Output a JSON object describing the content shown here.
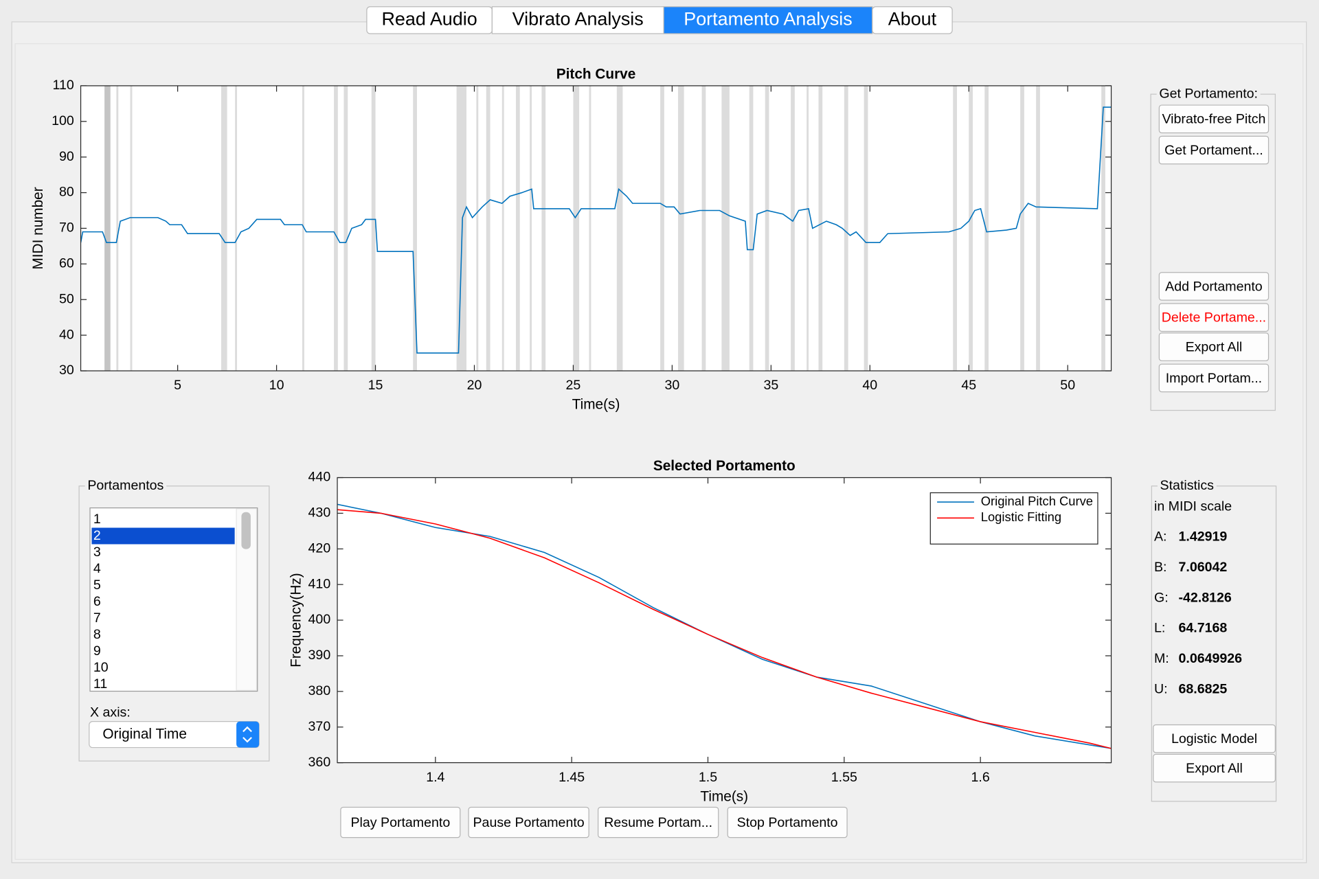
{
  "tabs": {
    "items": [
      "Read Audio",
      "Vibrato Analysis",
      "Portamento Analysis",
      "About"
    ],
    "active": 2
  },
  "chart_data": [
    {
      "type": "line",
      "title": "Pitch Curve",
      "x_label": "Time(s)",
      "y_label": "MIDI number",
      "color": "#0072bd",
      "x": [
        0.1,
        0.2,
        1.2,
        1.4,
        1.9,
        2.1,
        2.6,
        4.0,
        4.4,
        4.6,
        5.2,
        5.5,
        7.1,
        7.4,
        7.9,
        8.2,
        8.6,
        9.0,
        10.2,
        10.4,
        11.3,
        11.5,
        12.9,
        13.2,
        13.5,
        13.8,
        14.3,
        14.5,
        15.0,
        15.1,
        16.9,
        17.1,
        19.2,
        19.4,
        19.6,
        19.9,
        20.4,
        20.8,
        21.4,
        21.8,
        22.4,
        22.9,
        23.0,
        24.8,
        25.1,
        25.4,
        27.1,
        27.3,
        27.7,
        28.0,
        29.4,
        29.7,
        30.1,
        30.4,
        31.4,
        32.4,
        32.9,
        33.7,
        33.8,
        34.1,
        34.3,
        34.8,
        35.6,
        36.1,
        36.4,
        36.9,
        37.1,
        37.8,
        38.3,
        38.6,
        39.0,
        39.3,
        39.8,
        40.5,
        40.9,
        44.0,
        44.6,
        45.0,
        45.3,
        45.6,
        45.9,
        46.9,
        47.4,
        47.6,
        48.0,
        48.4,
        51.5,
        51.8,
        52.2
      ],
      "values": [
        66,
        69,
        69,
        66,
        66,
        72,
        73,
        73,
        72,
        71,
        71,
        68.5,
        68.5,
        66,
        66,
        69,
        70,
        72.5,
        72.5,
        71,
        71,
        69,
        69,
        66,
        66,
        70,
        71,
        72.5,
        72.5,
        63.5,
        63.5,
        35,
        35,
        73,
        76,
        73,
        76,
        78,
        77,
        79,
        80,
        81,
        75.5,
        75.5,
        73,
        75.5,
        75.5,
        81,
        79,
        77,
        77,
        76,
        76,
        74,
        75,
        75,
        73.5,
        72,
        64,
        64,
        74,
        75,
        74,
        72,
        75,
        75.5,
        70,
        72,
        71,
        70,
        68,
        69,
        66,
        66,
        68.5,
        69,
        70,
        72,
        75,
        75.5,
        69,
        69.5,
        70,
        74,
        77,
        76,
        75.5,
        104,
        104
      ],
      "regions": [
        [
          1.3,
          1.6
        ],
        [
          1.9,
          2.0
        ],
        [
          2.6,
          2.7
        ],
        [
          7.2,
          7.5
        ],
        [
          7.9,
          8.0
        ],
        [
          11.3,
          11.4
        ],
        [
          12.9,
          13.1
        ],
        [
          13.4,
          13.6
        ],
        [
          14.8,
          15.0
        ],
        [
          16.9,
          17.1
        ],
        [
          19.1,
          19.6
        ],
        [
          20.1,
          20.2
        ],
        [
          20.6,
          20.8
        ],
        [
          21.4,
          21.5
        ],
        [
          22.1,
          22.3
        ],
        [
          22.8,
          22.9
        ],
        [
          23.4,
          23.6
        ],
        [
          25.0,
          25.3
        ],
        [
          25.8,
          25.9
        ],
        [
          27.2,
          27.5
        ],
        [
          29.4,
          29.6
        ],
        [
          30.3,
          30.6
        ],
        [
          31.5,
          31.7
        ],
        [
          32.5,
          32.9
        ],
        [
          33.9,
          34.1
        ],
        [
          34.7,
          34.9
        ],
        [
          36.0,
          36.2
        ],
        [
          36.8,
          36.9
        ],
        [
          37.4,
          37.6
        ],
        [
          38.7,
          38.9
        ],
        [
          39.7,
          39.9
        ],
        [
          44.2,
          44.4
        ],
        [
          45.0,
          45.2
        ],
        [
          45.8,
          46.0
        ],
        [
          47.6,
          47.8
        ],
        [
          48.4,
          48.6
        ],
        [
          51.7,
          51.9
        ]
      ],
      "region_color": "#dcdcdc",
      "xlim": [
        0.1,
        52.2
      ],
      "ylim": [
        30,
        110
      ],
      "xticks": [
        5,
        10,
        15,
        20,
        25,
        30,
        35,
        40,
        45,
        50
      ],
      "yticks": [
        30,
        40,
        50,
        60,
        70,
        80,
        90,
        100,
        110
      ]
    },
    {
      "type": "line",
      "title": "Selected Portamento",
      "x_label": "Time(s)",
      "y_label": "Frequency(Hz)",
      "x": [
        1.364,
        1.38,
        1.4,
        1.42,
        1.44,
        1.46,
        1.48,
        1.5,
        1.52,
        1.54,
        1.56,
        1.58,
        1.6,
        1.62,
        1.64,
        1.648
      ],
      "series": [
        {
          "name": "Original Pitch Curve",
          "color": "#0072bd",
          "values": [
            432.5,
            430,
            426,
            423.5,
            419,
            412,
            403.5,
            396,
            389,
            384,
            381.5,
            376.5,
            371.5,
            367.5,
            365,
            364
          ]
        },
        {
          "name": "Logistic Fitting",
          "color": "#ff0000",
          "values": [
            431,
            430,
            427,
            423,
            417.5,
            410.5,
            403,
            396,
            389.5,
            384,
            379.5,
            375.5,
            371.5,
            368.5,
            365.5,
            364
          ]
        }
      ],
      "xlim": [
        1.364,
        1.648
      ],
      "ylim": [
        360,
        440
      ],
      "xticks": [
        1.4,
        1.45,
        1.5,
        1.55,
        1.6
      ],
      "yticks": [
        360,
        370,
        380,
        390,
        400,
        410,
        420,
        430,
        440
      ],
      "legend": "upper right"
    }
  ],
  "get_portamento": {
    "title": "Get Portamento:",
    "buttons": [
      {
        "label": "Vibrato-free Pitch"
      },
      {
        "label": "Get Portament..."
      },
      {
        "label": "Add Portamento"
      },
      {
        "label": "Delete Portame...",
        "text_color": "#ff0000"
      },
      {
        "label": "Export All"
      },
      {
        "label": "Import Portam..."
      }
    ]
  },
  "portamentos": {
    "title": "Portamentos",
    "items": [
      "1",
      "2",
      "3",
      "4",
      "5",
      "6",
      "7",
      "8",
      "9",
      "10",
      "11"
    ],
    "selected": 1,
    "x_axis_label": "X axis:",
    "x_axis_value": "Original Time"
  },
  "statistics": {
    "title": "Statistics",
    "subtitle": "in MIDI scale",
    "rows": [
      {
        "label": "A:",
        "value": 1.42919
      },
      {
        "label": "B:",
        "value": 7.06042
      },
      {
        "label": "G:",
        "value": -42.8126
      },
      {
        "label": "L:",
        "value": 64.7168
      },
      {
        "label": "M:",
        "value": 0.0649926
      },
      {
        "label": "U:",
        "value": 68.6825
      }
    ],
    "buttons": [
      "Logistic Model",
      "Export All"
    ]
  },
  "playback_buttons": [
    "Play Portamento",
    "Pause Portamento",
    "Resume Portam...",
    "Stop Portamento"
  ]
}
